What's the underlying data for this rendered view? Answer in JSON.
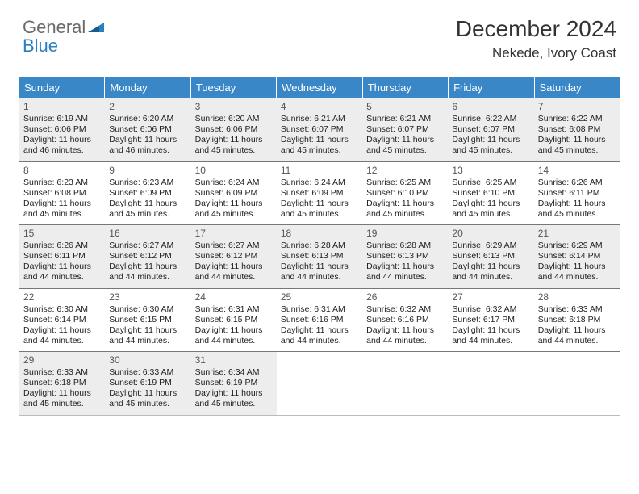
{
  "brand": {
    "text_gray": "General",
    "text_blue": "Blue",
    "triangle_color": "#2a7fbf"
  },
  "header": {
    "month_title": "December 2024",
    "location": "Nekede, Ivory Coast"
  },
  "calendar": {
    "day_headers": [
      "Sunday",
      "Monday",
      "Tuesday",
      "Wednesday",
      "Thursday",
      "Friday",
      "Saturday"
    ],
    "header_bg": "#3a87c7",
    "header_fg": "#ffffff",
    "shade_bg": "#ededed",
    "border_color": "#777777",
    "weeks": [
      [
        {
          "n": "1",
          "sr": "Sunrise: 6:19 AM",
          "ss": "Sunset: 6:06 PM",
          "dl": "Daylight: 11 hours and 46 minutes."
        },
        {
          "n": "2",
          "sr": "Sunrise: 6:20 AM",
          "ss": "Sunset: 6:06 PM",
          "dl": "Daylight: 11 hours and 46 minutes."
        },
        {
          "n": "3",
          "sr": "Sunrise: 6:20 AM",
          "ss": "Sunset: 6:06 PM",
          "dl": "Daylight: 11 hours and 45 minutes."
        },
        {
          "n": "4",
          "sr": "Sunrise: 6:21 AM",
          "ss": "Sunset: 6:07 PM",
          "dl": "Daylight: 11 hours and 45 minutes."
        },
        {
          "n": "5",
          "sr": "Sunrise: 6:21 AM",
          "ss": "Sunset: 6:07 PM",
          "dl": "Daylight: 11 hours and 45 minutes."
        },
        {
          "n": "6",
          "sr": "Sunrise: 6:22 AM",
          "ss": "Sunset: 6:07 PM",
          "dl": "Daylight: 11 hours and 45 minutes."
        },
        {
          "n": "7",
          "sr": "Sunrise: 6:22 AM",
          "ss": "Sunset: 6:08 PM",
          "dl": "Daylight: 11 hours and 45 minutes."
        }
      ],
      [
        {
          "n": "8",
          "sr": "Sunrise: 6:23 AM",
          "ss": "Sunset: 6:08 PM",
          "dl": "Daylight: 11 hours and 45 minutes."
        },
        {
          "n": "9",
          "sr": "Sunrise: 6:23 AM",
          "ss": "Sunset: 6:09 PM",
          "dl": "Daylight: 11 hours and 45 minutes."
        },
        {
          "n": "10",
          "sr": "Sunrise: 6:24 AM",
          "ss": "Sunset: 6:09 PM",
          "dl": "Daylight: 11 hours and 45 minutes."
        },
        {
          "n": "11",
          "sr": "Sunrise: 6:24 AM",
          "ss": "Sunset: 6:09 PM",
          "dl": "Daylight: 11 hours and 45 minutes."
        },
        {
          "n": "12",
          "sr": "Sunrise: 6:25 AM",
          "ss": "Sunset: 6:10 PM",
          "dl": "Daylight: 11 hours and 45 minutes."
        },
        {
          "n": "13",
          "sr": "Sunrise: 6:25 AM",
          "ss": "Sunset: 6:10 PM",
          "dl": "Daylight: 11 hours and 45 minutes."
        },
        {
          "n": "14",
          "sr": "Sunrise: 6:26 AM",
          "ss": "Sunset: 6:11 PM",
          "dl": "Daylight: 11 hours and 45 minutes."
        }
      ],
      [
        {
          "n": "15",
          "sr": "Sunrise: 6:26 AM",
          "ss": "Sunset: 6:11 PM",
          "dl": "Daylight: 11 hours and 44 minutes."
        },
        {
          "n": "16",
          "sr": "Sunrise: 6:27 AM",
          "ss": "Sunset: 6:12 PM",
          "dl": "Daylight: 11 hours and 44 minutes."
        },
        {
          "n": "17",
          "sr": "Sunrise: 6:27 AM",
          "ss": "Sunset: 6:12 PM",
          "dl": "Daylight: 11 hours and 44 minutes."
        },
        {
          "n": "18",
          "sr": "Sunrise: 6:28 AM",
          "ss": "Sunset: 6:13 PM",
          "dl": "Daylight: 11 hours and 44 minutes."
        },
        {
          "n": "19",
          "sr": "Sunrise: 6:28 AM",
          "ss": "Sunset: 6:13 PM",
          "dl": "Daylight: 11 hours and 44 minutes."
        },
        {
          "n": "20",
          "sr": "Sunrise: 6:29 AM",
          "ss": "Sunset: 6:13 PM",
          "dl": "Daylight: 11 hours and 44 minutes."
        },
        {
          "n": "21",
          "sr": "Sunrise: 6:29 AM",
          "ss": "Sunset: 6:14 PM",
          "dl": "Daylight: 11 hours and 44 minutes."
        }
      ],
      [
        {
          "n": "22",
          "sr": "Sunrise: 6:30 AM",
          "ss": "Sunset: 6:14 PM",
          "dl": "Daylight: 11 hours and 44 minutes."
        },
        {
          "n": "23",
          "sr": "Sunrise: 6:30 AM",
          "ss": "Sunset: 6:15 PM",
          "dl": "Daylight: 11 hours and 44 minutes."
        },
        {
          "n": "24",
          "sr": "Sunrise: 6:31 AM",
          "ss": "Sunset: 6:15 PM",
          "dl": "Daylight: 11 hours and 44 minutes."
        },
        {
          "n": "25",
          "sr": "Sunrise: 6:31 AM",
          "ss": "Sunset: 6:16 PM",
          "dl": "Daylight: 11 hours and 44 minutes."
        },
        {
          "n": "26",
          "sr": "Sunrise: 6:32 AM",
          "ss": "Sunset: 6:16 PM",
          "dl": "Daylight: 11 hours and 44 minutes."
        },
        {
          "n": "27",
          "sr": "Sunrise: 6:32 AM",
          "ss": "Sunset: 6:17 PM",
          "dl": "Daylight: 11 hours and 44 minutes."
        },
        {
          "n": "28",
          "sr": "Sunrise: 6:33 AM",
          "ss": "Sunset: 6:18 PM",
          "dl": "Daylight: 11 hours and 44 minutes."
        }
      ],
      [
        {
          "n": "29",
          "sr": "Sunrise: 6:33 AM",
          "ss": "Sunset: 6:18 PM",
          "dl": "Daylight: 11 hours and 45 minutes."
        },
        {
          "n": "30",
          "sr": "Sunrise: 6:33 AM",
          "ss": "Sunset: 6:19 PM",
          "dl": "Daylight: 11 hours and 45 minutes."
        },
        {
          "n": "31",
          "sr": "Sunrise: 6:34 AM",
          "ss": "Sunset: 6:19 PM",
          "dl": "Daylight: 11 hours and 45 minutes."
        },
        null,
        null,
        null,
        null
      ]
    ]
  }
}
